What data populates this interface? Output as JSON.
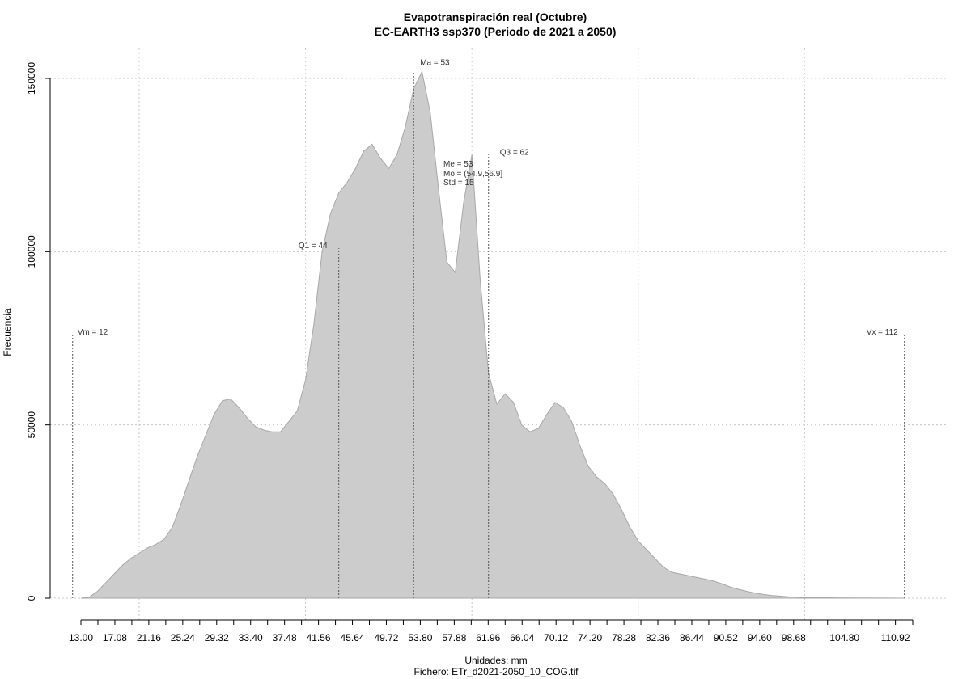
{
  "chart_data": {
    "type": "area",
    "title": "Evapotranspiración real (Octubre)",
    "subtitle": "EC-EARTH3 ssp370 (Periodo de 2021 a 2050)",
    "xlabel": "Unidades: mm",
    "ylabel": "Frecuencia",
    "file_label": "Fichero: ETr_d2021-2050_10_COG.tif",
    "xlim": [
      10,
      113.5
    ],
    "ylim": [
      0,
      150000
    ],
    "grid": true,
    "fill_color": "#cccccc",
    "x_tick_labels": [
      "13.00",
      "17.08",
      "21.16",
      "25.24",
      "29.32",
      "33.40",
      "37.48",
      "41.56",
      "45.64",
      "49.72",
      "53.80",
      "57.88",
      "61.96",
      "66.04",
      "70.12",
      "74.20",
      "78.28",
      "82.36",
      "86.44",
      "90.52",
      "94.60",
      "98.68",
      "104.80",
      "110.92"
    ],
    "y_tick_labels": [
      "0",
      "50000",
      "100000",
      "150000"
    ],
    "y_tick_values": [
      0,
      50000,
      100000,
      150000
    ],
    "x_minor_ticks": [
      13,
      15.04,
      17.08,
      19.12,
      21.16,
      23.2,
      25.24,
      27.28,
      29.32,
      31.36,
      33.4,
      35.44,
      37.48,
      39.52,
      41.56,
      43.6,
      45.64,
      47.68,
      49.72,
      51.76,
      53.8,
      55.84,
      57.88,
      59.92,
      61.96,
      64.0,
      66.04,
      68.08,
      70.12,
      72.16,
      74.2,
      76.24,
      78.28,
      80.32,
      82.36,
      84.4,
      86.44,
      88.48,
      90.52,
      92.56,
      94.6,
      96.64,
      98.68,
      100.72,
      102.76,
      104.8,
      106.84,
      108.88,
      110.92,
      113.0
    ],
    "x_grid": [
      20.0,
      40.0,
      60.0,
      80.0,
      100.0
    ],
    "x": [
      13.0,
      14.0,
      15.0,
      16.0,
      17.0,
      18.0,
      19.0,
      20.0,
      21.0,
      22.0,
      23.0,
      24.0,
      25.0,
      26.0,
      27.0,
      28.0,
      29.0,
      30.0,
      31.0,
      32.0,
      33.0,
      34.0,
      35.0,
      36.0,
      37.0,
      38.0,
      39.0,
      40.0,
      41.0,
      42.0,
      43.0,
      44.0,
      45.0,
      46.0,
      47.0,
      48.0,
      49.0,
      50.0,
      51.0,
      52.0,
      53.0,
      54.0,
      55.0,
      56.0,
      57.0,
      58.0,
      59.0,
      60.0,
      61.0,
      62.0,
      63.0,
      64.0,
      65.0,
      66.0,
      67.0,
      68.0,
      69.0,
      70.0,
      71.0,
      72.0,
      73.0,
      74.0,
      75.0,
      76.0,
      77.0,
      78.0,
      79.0,
      80.0,
      81.0,
      82.0,
      83.0,
      84.0,
      85.0,
      86.0,
      87.0,
      88.0,
      89.0,
      90.0,
      91.0,
      92.0,
      93.0,
      94.0,
      95.0,
      96.0,
      97.0,
      98.0,
      99.0,
      100.0,
      102.0,
      104.0,
      106.0,
      108.0,
      110.0,
      112.0
    ],
    "y": [
      0,
      300,
      2000,
      4500,
      7000,
      9500,
      11500,
      13000,
      14500,
      15500,
      17000,
      20500,
      27000,
      34000,
      41000,
      47000,
      53000,
      57000,
      57500,
      55000,
      52000,
      49500,
      48500,
      48000,
      48000,
      51000,
      54000,
      63000,
      79000,
      100000,
      111000,
      117000,
      120000,
      124000,
      129000,
      131000,
      127000,
      124000,
      128000,
      136000,
      147000,
      152000,
      140000,
      118000,
      97000,
      94000,
      114000,
      128000,
      92000,
      65000,
      56000,
      59000,
      56500,
      50000,
      48000,
      49000,
      53000,
      56500,
      55000,
      51000,
      44000,
      38000,
      35000,
      33000,
      30000,
      25500,
      20500,
      16500,
      14000,
      11500,
      9000,
      7500,
      7000,
      6500,
      6000,
      5500,
      5000,
      4200,
      3300,
      2600,
      2000,
      1500,
      1100,
      800,
      600,
      400,
      300,
      200,
      150,
      100,
      80,
      50,
      20,
      0
    ],
    "annotations": {
      "vm": {
        "label": "Vm = 12",
        "x": 12.0,
        "y_top": 76000
      },
      "q1": {
        "label": "Q1 = 44",
        "x": 44.0,
        "y_top": 101000
      },
      "ma": {
        "label": "Ma = 53",
        "x": 53.0,
        "y_top": 152000
      },
      "q3": {
        "label": "Q3 = 62",
        "x": 62.0,
        "y_top": 128000
      },
      "vx": {
        "label": "Vx = 112",
        "x": 112.0,
        "y_top": 76000
      },
      "stats": [
        "Me = 53",
        "Mo = (54.9,56.9]",
        "Std = 15"
      ]
    }
  }
}
